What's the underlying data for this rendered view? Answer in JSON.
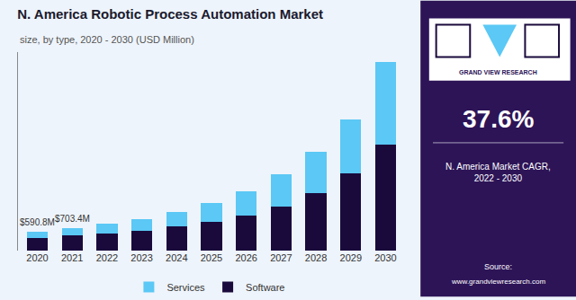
{
  "chart_data": {
    "type": "bar",
    "title": "N. America Robotic Process Automation Market",
    "subtitle": "size, by type, 2020 - 2030 (USD Million)",
    "categories": [
      "2020",
      "2021",
      "2022",
      "2023",
      "2024",
      "2025",
      "2026",
      "2027",
      "2028",
      "2029",
      "2030"
    ],
    "series": [
      {
        "name": "Software",
        "color": "#1a0a3c",
        "values": [
          390,
          470,
          540,
          630,
          750,
          900,
          1100,
          1380,
          1800,
          2400,
          3300
        ]
      },
      {
        "name": "Services",
        "color": "#5bc8f5",
        "values": [
          201,
          233,
          290,
          360,
          450,
          580,
          760,
          1000,
          1300,
          1700,
          2600
        ]
      }
    ],
    "stacked": true,
    "ylim": [
      0,
      6200
    ],
    "tick_labels": "x",
    "grid": false,
    "legend": "bottom",
    "annotations": [
      {
        "category": "2020",
        "text": "$590.8M"
      },
      {
        "category": "2021",
        "text": "$703.4M"
      },
      {
        "text": "GRAND VIEW RESEARCH"
      },
      {
        "text": "37.6%"
      },
      {
        "text": "N. America Market CAGR,\n2022 - 2030"
      },
      {
        "text": "Source:"
      },
      {
        "text": "www.grandviewresearch.com"
      }
    ]
  }
}
